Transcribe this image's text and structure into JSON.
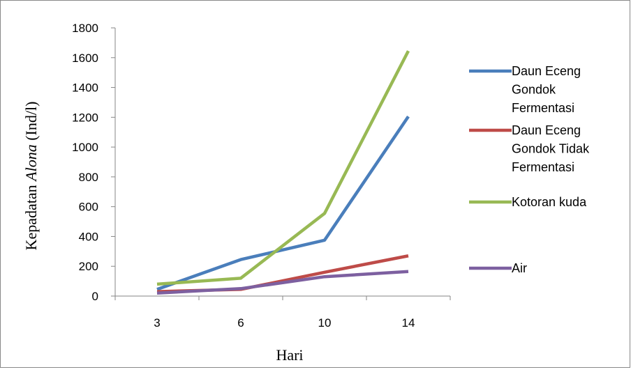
{
  "chart_data": {
    "type": "line",
    "title": "",
    "categories": [
      "3",
      "6",
      "10",
      "14"
    ],
    "xlabel": "Hari",
    "ylabel": {
      "prefix": "Kepadatan ",
      "italic": "Alona",
      "suffix": " (Ind/l)"
    },
    "ylim": [
      0,
      1800
    ],
    "yticks": [
      "0",
      "200",
      "400",
      "600",
      "800",
      "1000",
      "1200",
      "1400",
      "1600",
      "1800"
    ],
    "grid": false,
    "legend_position": "right",
    "series": [
      {
        "name": "Daun Eceng Gondok Fermentasi",
        "legend_lines": [
          "Daun Eceng",
          "Gondok",
          "Fermentasi"
        ],
        "color": "#4A7EBB",
        "values": [
          45,
          245,
          375,
          1205
        ]
      },
      {
        "name": "Daun Eceng Gondok Tidak Fermentasi",
        "legend_lines": [
          "Daun Eceng",
          "Gondok Tidak",
          "Fermentasi"
        ],
        "color": "#BE4B48",
        "values": [
          30,
          45,
          160,
          270
        ]
      },
      {
        "name": "Kotoran kuda",
        "legend_lines": [
          "Kotoran kuda"
        ],
        "color": "#98B954",
        "values": [
          80,
          120,
          555,
          1645
        ]
      },
      {
        "name": "Air",
        "legend_lines": [
          "Air"
        ],
        "color": "#7D60A0",
        "values": [
          20,
          50,
          130,
          165
        ]
      }
    ]
  }
}
